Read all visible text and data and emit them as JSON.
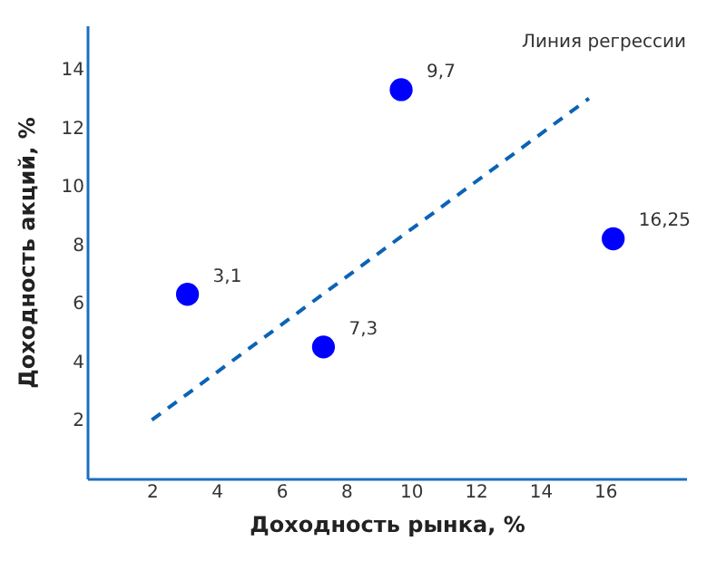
{
  "chart_data": {
    "type": "scatter",
    "xlabel": "Доходность рынка, %",
    "ylabel": "Доходность акций, %",
    "xlim": [
      0,
      18.5
    ],
    "ylim": [
      0,
      15.5
    ],
    "xticks": [
      2,
      4,
      6,
      8,
      10,
      12,
      14,
      16
    ],
    "yticks": [
      2,
      4,
      6,
      8,
      10,
      12,
      14
    ],
    "grid": false,
    "annotations": [
      "Линия регрессии",
      {
        "text": "3,1",
        "x": 3.1,
        "y": 6.3
      },
      {
        "text": "7,3",
        "x": 7.3,
        "y": 4.5
      },
      {
        "text": "9,7",
        "x": 9.7,
        "y": 13.3
      },
      {
        "text": "16,25",
        "x": 16.25,
        "y": 8.2
      }
    ],
    "series": [
      {
        "type": "line",
        "color": "#0b63b5",
        "line_style": "dashed",
        "x": [
          2,
          15.5
        ],
        "values": [
          2,
          13
        ]
      },
      {
        "color": "#0000ff",
        "marker": "circle",
        "x": [
          3.1,
          7.3,
          9.7,
          16.25
        ],
        "values": [
          6.3,
          4.5,
          13.3,
          8.2
        ]
      }
    ]
  }
}
